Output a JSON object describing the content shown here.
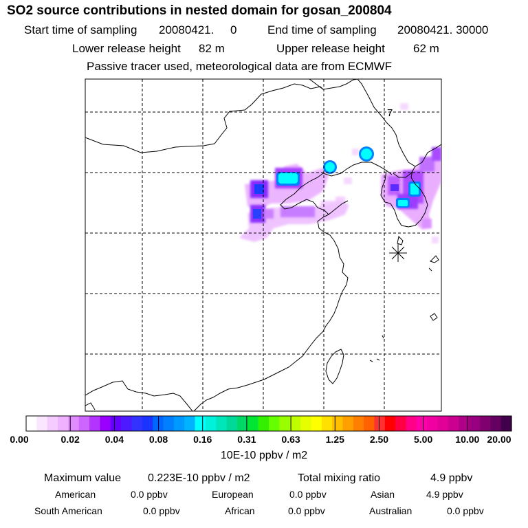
{
  "header": {
    "title": "SO2 source contributions in nested domain for gosan_200804",
    "start_label": "Start time of sampling",
    "start_value": "20080421.     0",
    "end_label": "End time of sampling",
    "end_value": "20080421. 30000",
    "lower_label": "Lower release height",
    "lower_value": "82 m",
    "upper_label": "Upper release height",
    "upper_value": "62 m",
    "note": "Passive tracer used, meteorological data are from ECMWF"
  },
  "map": {
    "marker_label": "7",
    "receptor_symbol": "asterisk"
  },
  "colorbar": {
    "tick_labels": [
      "0.00",
      "0.02",
      "0.04",
      "0.08",
      "0.16",
      "0.31",
      "0.63",
      "1.25",
      "2.50",
      "5.00",
      "10.00",
      "20.00"
    ],
    "colors": [
      "#ffffff",
      "#fbe6ff",
      "#f5ccff",
      "#efb2ff",
      "#e08cff",
      "#cc66ff",
      "#b333ff",
      "#9900ff",
      "#6600ff",
      "#4d1aff",
      "#3333ff",
      "#1a33ff",
      "#0066ff",
      "#0080ff",
      "#0099ff",
      "#00b3ff",
      "#00ffff",
      "#00f2dd",
      "#00e6bb",
      "#00d999",
      "#00d966",
      "#00e633",
      "#33f000",
      "#66ff00",
      "#99ff00",
      "#c0ff00",
      "#e6ff00",
      "#ffff00",
      "#ffe000",
      "#ffc000",
      "#ffa000",
      "#ff8000",
      "#ff6000",
      "#ff3030",
      "#ff0000",
      "#ff0044",
      "#ff0088",
      "#ff00aa",
      "#f000a0",
      "#e00098",
      "#cc0090",
      "#b00088",
      "#990080",
      "#800070",
      "#660060",
      "#40004a"
    ],
    "unit": "10E-10 ppbv / m2"
  },
  "summary": {
    "max_label": "Maximum value",
    "max_value": "0.223E-10 ppbv / m2",
    "total_label": "Total mixing ratio",
    "total_value": "4.9 ppbv",
    "sources": [
      {
        "name": "American",
        "value": "0.0 ppbv"
      },
      {
        "name": "European",
        "value": "0.0 ppbv"
      },
      {
        "name": "Asian",
        "value": "4.9 ppbv"
      },
      {
        "name": "South American",
        "value": "0.0 ppbv"
      },
      {
        "name": "African",
        "value": "0.0 ppbv"
      },
      {
        "name": "Australian",
        "value": "0.0 ppbv"
      }
    ]
  }
}
